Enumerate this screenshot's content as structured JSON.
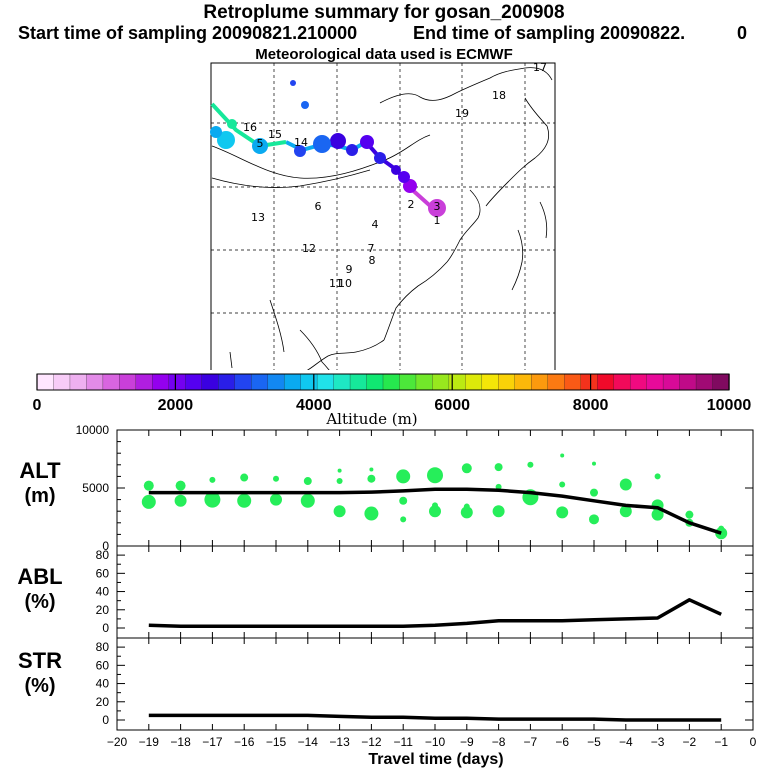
{
  "header": {
    "title": "Retroplume summary for gosan_200908",
    "start": "Start time of sampling 20090821.210000",
    "end": "End time of sampling 20090822.",
    "end_suffix": "0",
    "met": "Meteorological data used is ECMWF"
  },
  "colorbar": {
    "colors": [
      "#ffe6ff",
      "#f7ccf7",
      "#eeb0f0",
      "#e38be8",
      "#d865e0",
      "#c93fd9",
      "#b01ee0",
      "#9400ee",
      "#7400f0",
      "#5500f0",
      "#3a00e0",
      "#2a1ee8",
      "#2244f0",
      "#1a66f2",
      "#1288f2",
      "#0aaaf0",
      "#10c8f0",
      "#20e2ea",
      "#1ee8c4",
      "#16e89a",
      "#10e872",
      "#26e84e",
      "#4ce83a",
      "#72e82a",
      "#98e81e",
      "#bcea12",
      "#ddea0a",
      "#f4e608",
      "#fad208",
      "#fcb80a",
      "#fc9a0e",
      "#fc7a12",
      "#fa5a16",
      "#f4321c",
      "#f00a2a",
      "#f20a5a",
      "#f00a80",
      "#e80a9a",
      "#d80a98",
      "#c00a88",
      "#a00a74",
      "#800a60"
    ],
    "ticks": [
      "0",
      "2000",
      "4000",
      "6000",
      "8000",
      "10000"
    ],
    "label": "Altitude  (m)"
  },
  "map": {
    "track_labels": [
      "1",
      "2",
      "3",
      "4",
      "5",
      "6",
      "7",
      "8",
      "9",
      "10",
      "11",
      "12",
      "13",
      "14",
      "15",
      "16",
      "17",
      "18",
      "19"
    ]
  },
  "chart_data": [
    {
      "type": "line",
      "name": "ALT",
      "ylabel": "ALT",
      "yunit": "(m)",
      "x": [
        -19,
        -18,
        -17,
        -16,
        -15,
        -14,
        -13,
        -12,
        -11,
        -10,
        -9,
        -8,
        -7,
        -6,
        -5,
        -4,
        -3,
        -2,
        -1
      ],
      "values": [
        4600,
        4600,
        4600,
        4600,
        4600,
        4600,
        4600,
        4650,
        4750,
        4900,
        4900,
        4800,
        4600,
        4300,
        3900,
        3500,
        3300,
        2000,
        1100
      ],
      "ylim": [
        0,
        10000
      ],
      "yticks": [
        "0",
        "5000",
        "10000"
      ],
      "scatter": [
        [
          -19,
          3800,
          7
        ],
        [
          -19,
          5200,
          5
        ],
        [
          -18,
          3900,
          6
        ],
        [
          -18,
          5200,
          5
        ],
        [
          -17,
          4000,
          8
        ],
        [
          -17,
          5700,
          3
        ],
        [
          -16,
          3900,
          7
        ],
        [
          -16,
          5900,
          4
        ],
        [
          -15,
          4000,
          6
        ],
        [
          -15,
          5800,
          3
        ],
        [
          -14,
          3900,
          7
        ],
        [
          -14,
          5600,
          4
        ],
        [
          -13,
          3000,
          6
        ],
        [
          -13,
          5600,
          3
        ],
        [
          -13,
          6500,
          2
        ],
        [
          -12,
          2800,
          7
        ],
        [
          -12,
          5800,
          4
        ],
        [
          -12,
          6600,
          2
        ],
        [
          -11,
          2300,
          3
        ],
        [
          -11,
          3900,
          4
        ],
        [
          -11,
          6000,
          7
        ],
        [
          -10,
          3000,
          6
        ],
        [
          -10,
          6100,
          8
        ],
        [
          -10,
          3500,
          3
        ],
        [
          -9,
          2900,
          6
        ],
        [
          -9,
          6700,
          5
        ],
        [
          -9,
          3400,
          3
        ],
        [
          -8,
          3000,
          6
        ],
        [
          -8,
          6800,
          4
        ],
        [
          -8,
          5100,
          3
        ],
        [
          -7,
          4200,
          8
        ],
        [
          -7,
          7000,
          3
        ],
        [
          -6,
          2900,
          6
        ],
        [
          -6,
          5300,
          3
        ],
        [
          -6,
          7800,
          2
        ],
        [
          -5,
          2300,
          5
        ],
        [
          -5,
          4600,
          4
        ],
        [
          -5,
          7100,
          2
        ],
        [
          -4,
          3000,
          6
        ],
        [
          -4,
          5300,
          6
        ],
        [
          -3,
          2700,
          6
        ],
        [
          -3,
          3500,
          6
        ],
        [
          -3,
          6000,
          3
        ],
        [
          -2,
          2000,
          4
        ],
        [
          -2,
          2700,
          4
        ],
        [
          -1,
          1100,
          6
        ],
        [
          -1,
          1500,
          3
        ]
      ]
    },
    {
      "type": "line",
      "name": "ABL",
      "ylabel": "ABL",
      "yunit": "(%)",
      "x": [
        -19,
        -18,
        -17,
        -16,
        -15,
        -14,
        -13,
        -12,
        -11,
        -10,
        -9,
        -8,
        -7,
        -6,
        -5,
        -4,
        -3,
        -2,
        -1
      ],
      "values": [
        3,
        2,
        2,
        2,
        2,
        2,
        2,
        2,
        2,
        3,
        5,
        8,
        8,
        8,
        9,
        10,
        11,
        31,
        15
      ],
      "ylim": [
        0,
        90
      ],
      "yticks": [
        "0",
        "20",
        "40",
        "60",
        "80"
      ]
    },
    {
      "type": "line",
      "name": "STR",
      "ylabel": "STR",
      "yunit": "(%)",
      "x": [
        -19,
        -18,
        -17,
        -16,
        -15,
        -14,
        -13,
        -12,
        -11,
        -10,
        -9,
        -8,
        -7,
        -6,
        -5,
        -4,
        -3,
        -2,
        -1
      ],
      "values": [
        5,
        5,
        5,
        5,
        5,
        5,
        4,
        3,
        3,
        2,
        2,
        1,
        1,
        1,
        1,
        0,
        0,
        0,
        0
      ],
      "ylim": [
        0,
        90
      ],
      "yticks": [
        "0",
        "20",
        "40",
        "60",
        "80"
      ]
    }
  ],
  "xaxis": {
    "xlim": [
      -20,
      0
    ],
    "ticks": [
      "−20",
      "−19",
      "−18",
      "−17",
      "−16",
      "−15",
      "−14",
      "−13",
      "−12",
      "−11",
      "−10",
      "−9",
      "−8",
      "−7",
      "−6",
      "−5",
      "−4",
      "−3",
      "−2",
      "−1",
      "0"
    ],
    "label": "Travel time (days)"
  }
}
